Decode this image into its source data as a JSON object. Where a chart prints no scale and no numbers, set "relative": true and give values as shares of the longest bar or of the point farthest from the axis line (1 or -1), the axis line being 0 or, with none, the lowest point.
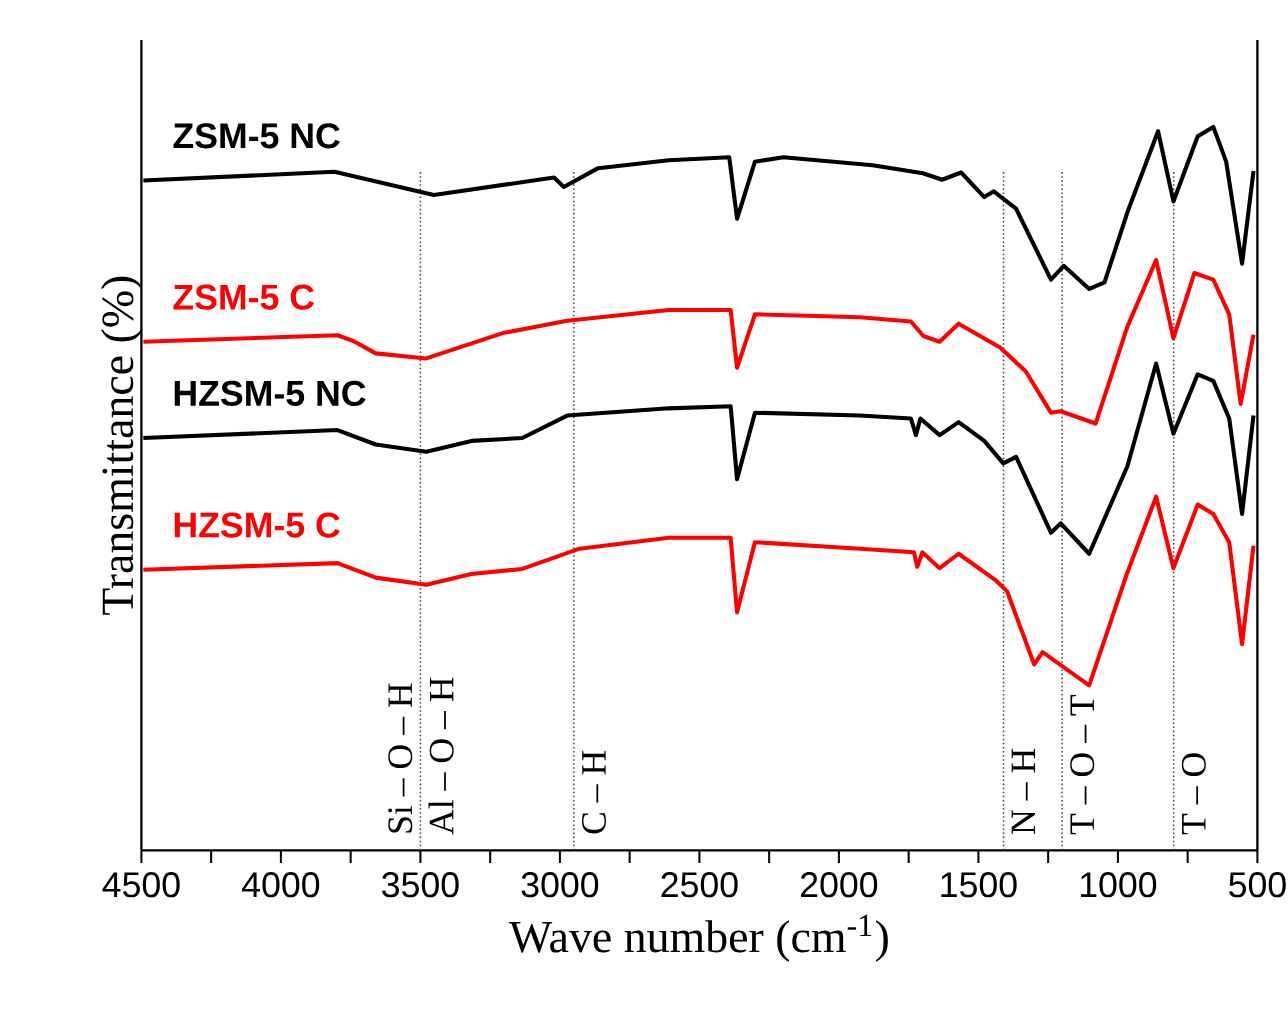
{
  "chart_data": {
    "type": "line",
    "relative": true,
    "xlabel": "Wave number (cm$^{-1}$)",
    "ylabel": "Transmittance (%)",
    "xlim": [
      4500,
      500
    ],
    "xticks": [
      4500,
      {
        "value": 4250,
        "label": null
      },
      4000,
      {
        "value": 3750,
        "label": null
      },
      3500,
      {
        "value": 3250,
        "label": null
      },
      3000,
      {
        "value": 2750,
        "label": null
      },
      2500,
      {
        "value": 2250,
        "label": null
      },
      2000,
      {
        "value": 1750,
        "label": null
      },
      1500,
      {
        "value": 1250,
        "label": null
      },
      1000,
      {
        "value": 750,
        "label": null
      },
      500
    ],
    "series": [
      {
        "name": "ZSM-5 NC",
        "color": "#000000",
        "x": [
          4493,
          3808,
          3452,
          3021,
          2986,
          2863,
          2610,
          2393,
          2365,
          2301,
          2199,
          1879,
          1699,
          1630,
          1562,
          1479,
          1445,
          1365,
          1240,
          1194,
          1103,
          1048,
          966,
          856,
          801,
          714,
          658,
          612,
          555,
          514
        ],
        "values": [
          0.926,
          0.938,
          0.906,
          0.93,
          0.917,
          0.943,
          0.954,
          0.958,
          0.873,
          0.952,
          0.958,
          0.947,
          0.936,
          0.927,
          0.937,
          0.903,
          0.911,
          0.887,
          0.789,
          0.808,
          0.776,
          0.785,
          0.882,
          0.994,
          0.897,
          0.987,
          1.0,
          0.952,
          0.811,
          0.939
        ]
      },
      {
        "name": "ZSM-5 C",
        "color": "#ff0000",
        "x": [
          4493,
          3797,
          3740,
          3660,
          3479,
          3205,
          2974,
          2610,
          2388,
          2365,
          2301,
          1925,
          1742,
          1697,
          1639,
          1571,
          1422,
          1330,
          1240,
          1205,
          1080,
          966,
          863,
          801,
          726,
          658,
          601,
          560,
          514
        ],
        "values": [
          0.703,
          0.712,
          0.704,
          0.687,
          0.68,
          0.715,
          0.732,
          0.747,
          0.747,
          0.667,
          0.741,
          0.737,
          0.731,
          0.711,
          0.703,
          0.728,
          0.695,
          0.662,
          0.605,
          0.607,
          0.59,
          0.724,
          0.816,
          0.708,
          0.798,
          0.789,
          0.741,
          0.617,
          0.713
        ]
      },
      {
        "name": "HZSM-5 NC",
        "color": "#000000",
        "x": [
          4493,
          3797,
          3660,
          3479,
          3317,
          3135,
          2974,
          2610,
          2388,
          2365,
          2301,
          1925,
          1742,
          1724,
          1708,
          1639,
          1571,
          1479,
          1411,
          1365,
          1240,
          1205,
          1103,
          966,
          863,
          801,
          714,
          658,
          601,
          555,
          514
        ],
        "values": [
          0.57,
          0.581,
          0.561,
          0.551,
          0.566,
          0.57,
          0.601,
          0.611,
          0.614,
          0.513,
          0.605,
          0.601,
          0.597,
          0.574,
          0.597,
          0.574,
          0.592,
          0.566,
          0.535,
          0.544,
          0.439,
          0.452,
          0.41,
          0.531,
          0.673,
          0.576,
          0.658,
          0.649,
          0.597,
          0.465,
          0.601
        ]
      },
      {
        "name": "HZSM-5 C",
        "color": "#ff0000",
        "x": [
          4493,
          3797,
          3660,
          3479,
          3317,
          3135,
          2929,
          2610,
          2388,
          2365,
          2301,
          1925,
          1731,
          1719,
          1701,
          1639,
          1571,
          1440,
          1397,
          1300,
          1270,
          1103,
          968,
          863,
          801,
          714,
          658,
          601,
          555,
          514
        ],
        "values": [
          0.388,
          0.397,
          0.377,
          0.367,
          0.382,
          0.389,
          0.417,
          0.432,
          0.432,
          0.329,
          0.426,
          0.417,
          0.412,
          0.392,
          0.412,
          0.39,
          0.41,
          0.374,
          0.358,
          0.257,
          0.274,
          0.228,
          0.382,
          0.489,
          0.39,
          0.478,
          0.465,
          0.426,
          0.285,
          0.421
        ]
      }
    ],
    "ref_lines": [
      {
        "axis": "x",
        "value": 3500,
        "label": "Si – O – H",
        "color": "#404040",
        "line_style": "dotted"
      },
      {
        "axis": "x",
        "value": 2950,
        "label": "C – H",
        "color": "#404040",
        "line_style": "dotted"
      },
      {
        "axis": "x",
        "value": 1410,
        "label": "N – H",
        "color": "#404040",
        "line_style": "dotted"
      },
      {
        "axis": "x",
        "value": 1200,
        "label": "T – O – T",
        "color": "#404040",
        "line_style": "dotted"
      },
      {
        "axis": "x",
        "value": 800,
        "label": "T – O",
        "color": "#404040",
        "line_style": "dotted"
      }
    ],
    "annotations": [
      {
        "text": "Al – O – H",
        "x": 3500,
        "y": 0
      }
    ]
  }
}
